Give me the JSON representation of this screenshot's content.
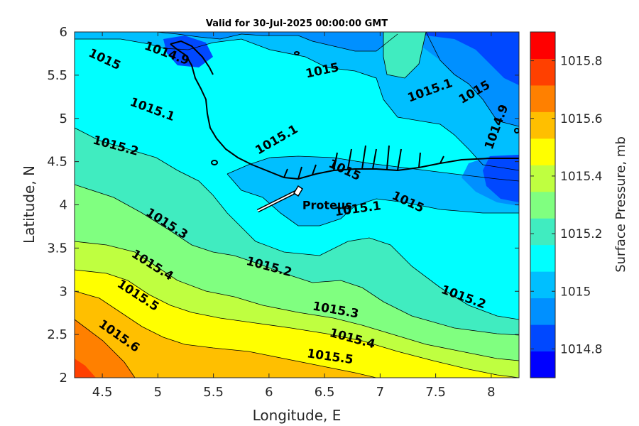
{
  "chart_data": {
    "type": "heatmap",
    "title": "Valid for 30-Jul-2025 00:00:00 GMT",
    "xlabel": "Longitude, E",
    "ylabel": "Latitude, N",
    "xlim": [
      4.25,
      8.25
    ],
    "ylim": [
      2,
      6
    ],
    "x_ticks": [
      "4.5",
      "5",
      "5.5",
      "6",
      "6.5",
      "7",
      "7.5",
      "8"
    ],
    "y_ticks": [
      "2",
      "2.5",
      "3",
      "3.5",
      "4",
      "4.5",
      "5",
      "5.5",
      "6"
    ],
    "colorbar": {
      "label": "Surface Pressure, mb",
      "range": [
        1014.7,
        1015.9
      ],
      "ticks": [
        "1014.8",
        "1015",
        "1015.2",
        "1015.4",
        "1015.6",
        "1015.8"
      ],
      "colors": [
        "#0000ff",
        "#0048ff",
        "#0090ff",
        "#00bfff",
        "#00ffff",
        "#40ecc0",
        "#80ff80",
        "#bfff40",
        "#ffff00",
        "#ffbf00",
        "#ff8000",
        "#ff4000",
        "#ff0000"
      ]
    },
    "contour_labels": [
      {
        "text": "1015",
        "lon": 4.52,
        "lat": 5.68
      },
      {
        "text": "1014.9",
        "lon": 5.08,
        "lat": 5.75
      },
      {
        "text": "1015",
        "lon": 6.48,
        "lat": 5.55
      },
      {
        "text": "1015.1",
        "lon": 7.45,
        "lat": 5.32
      },
      {
        "text": "1015",
        "lon": 7.85,
        "lat": 5.3
      },
      {
        "text": "1014.9",
        "lon": 8.05,
        "lat": 4.9
      },
      {
        "text": "1015.1",
        "lon": 4.95,
        "lat": 5.1
      },
      {
        "text": "1015.1",
        "lon": 6.07,
        "lat": 4.75
      },
      {
        "text": "1015.2",
        "lon": 4.62,
        "lat": 4.68
      },
      {
        "text": "1015",
        "lon": 6.68,
        "lat": 4.4
      },
      {
        "text": "1015",
        "lon": 7.25,
        "lat": 4.03
      },
      {
        "text": "1015.1",
        "lon": 6.8,
        "lat": 3.95
      },
      {
        "text": "1015.3",
        "lon": 5.08,
        "lat": 3.78
      },
      {
        "text": "1015.2",
        "lon": 6.0,
        "lat": 3.28
      },
      {
        "text": "1015.4",
        "lon": 4.95,
        "lat": 3.3
      },
      {
        "text": "1015.2",
        "lon": 7.75,
        "lat": 2.93
      },
      {
        "text": "1015.5",
        "lon": 4.82,
        "lat": 2.95
      },
      {
        "text": "1015.3",
        "lon": 6.6,
        "lat": 2.78
      },
      {
        "text": "1015.6",
        "lon": 4.65,
        "lat": 2.48
      },
      {
        "text": "1015.4",
        "lon": 6.75,
        "lat": 2.45
      },
      {
        "text": "1015.5",
        "lon": 6.55,
        "lat": 2.24
      }
    ],
    "annotation": {
      "text": "Proteus",
      "lon": 6.3,
      "lat": 4.0
    },
    "grid": false,
    "legend": "colorbar-right"
  }
}
